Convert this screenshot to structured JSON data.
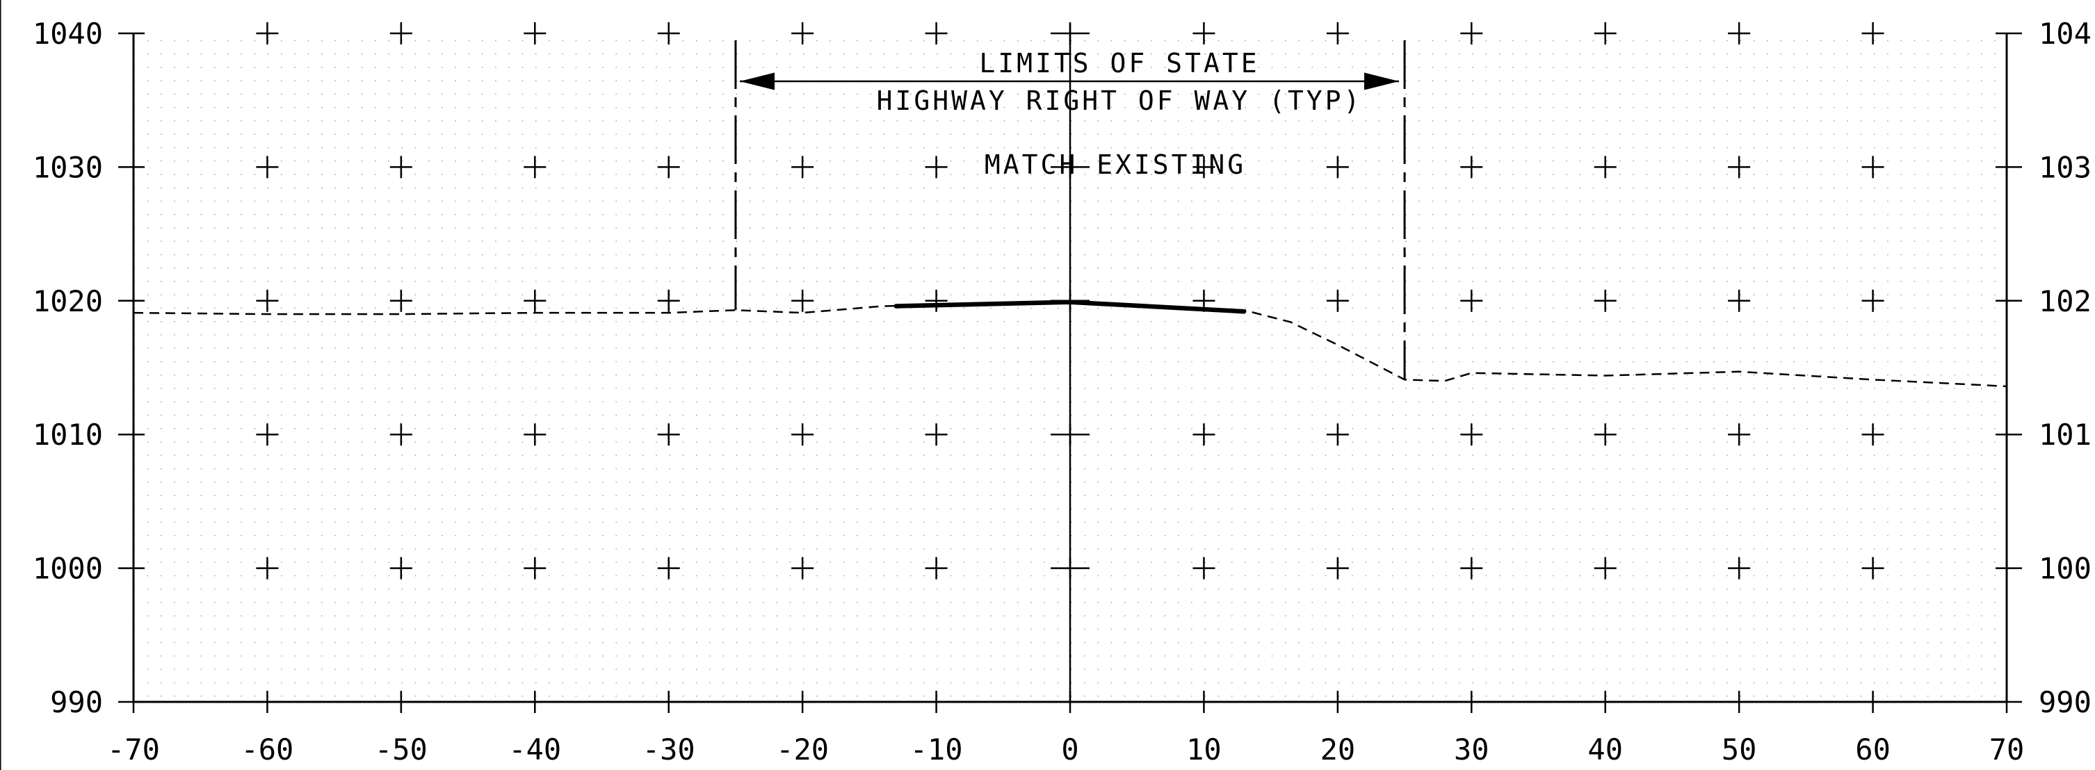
{
  "chart_data": {
    "type": "line",
    "title": "",
    "xlabel": "",
    "ylabel": "",
    "x_ticks": [
      "-70",
      "-60",
      "-50",
      "-40",
      "-30",
      "-20",
      "-10",
      "0",
      "10",
      "20",
      "30",
      "40",
      "50",
      "60",
      "70"
    ],
    "y_ticks": [
      "990",
      "1000",
      "1010",
      "1020",
      "1030",
      "1040"
    ],
    "y_ticks_right": [
      "990",
      "100",
      "101",
      "102",
      "103",
      "104"
    ],
    "xlim": [
      -70,
      70
    ],
    "ylim": [
      990,
      1040
    ],
    "grid": "dotted",
    "series": [
      {
        "style": "dashed",
        "points": [
          [
            -70,
            1019.1
          ],
          [
            -60,
            1019.0
          ],
          [
            -50,
            1019.0
          ],
          [
            -40,
            1019.1
          ],
          [
            -30,
            1019.1
          ],
          [
            -25,
            1019.3
          ],
          [
            -20,
            1019.1
          ],
          [
            -14,
            1019.6
          ],
          [
            0,
            1019.9
          ],
          [
            13,
            1019.3
          ],
          [
            16.5,
            1018.4
          ],
          [
            20,
            1016.7
          ],
          [
            25,
            1014.1
          ],
          [
            28,
            1014.0
          ],
          [
            30,
            1014.6
          ],
          [
            40,
            1014.4
          ],
          [
            50,
            1014.7
          ],
          [
            60,
            1014.1
          ],
          [
            70,
            1013.6
          ]
        ]
      },
      {
        "style": "solid-heavy",
        "points": [
          [
            -13,
            1019.6
          ],
          [
            0,
            1019.9
          ],
          [
            13,
            1019.2
          ]
        ]
      }
    ],
    "reference_lines": {
      "center_x": 0,
      "row_limits_x": [
        -25,
        25
      ]
    },
    "annotations": {
      "limits_line1": "LIMITS OF STATE",
      "limits_line2": "HIGHWAY RIGHT OF WAY (TYP)",
      "match_existing": "MATCH EXISTING"
    }
  },
  "colors": {
    "ink": "#000000",
    "grid_dot": "#9a9a9a",
    "background": "#ffffff"
  }
}
